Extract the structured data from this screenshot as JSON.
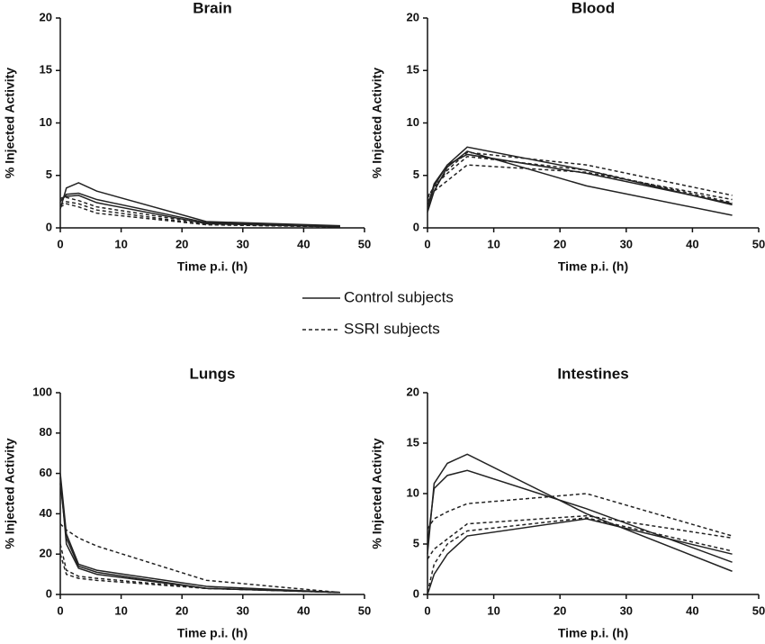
{
  "chart_data": [
    {
      "type": "line",
      "title": "Brain",
      "xlabel": "Time p.i. (h)",
      "ylabel": "% Injected Activity",
      "xlim": [
        0,
        50
      ],
      "ylim": [
        0,
        20
      ],
      "xticks": [
        0,
        10,
        20,
        30,
        40,
        50
      ],
      "yticks": [
        0,
        5,
        10,
        15,
        20
      ],
      "x": [
        0,
        1,
        3,
        6,
        24,
        46
      ],
      "color": "#222",
      "series": [
        {
          "style": "solid",
          "values": [
            1.8,
            3.8,
            4.3,
            3.5,
            0.6,
            0.2
          ]
        },
        {
          "style": "solid",
          "values": [
            2.5,
            3.2,
            3.3,
            2.7,
            0.5,
            0.1
          ]
        },
        {
          "style": "solid",
          "values": [
            2.8,
            3.0,
            3.1,
            2.4,
            0.4,
            0.1
          ]
        },
        {
          "style": "dashed",
          "values": [
            2.6,
            2.9,
            2.6,
            2.0,
            0.4,
            0.1
          ]
        },
        {
          "style": "dashed",
          "values": [
            2.2,
            2.5,
            2.3,
            1.7,
            0.3,
            0.1
          ]
        },
        {
          "style": "dashed",
          "values": [
            2.0,
            2.3,
            2.0,
            1.4,
            0.3,
            0.1
          ]
        }
      ]
    },
    {
      "type": "line",
      "title": "Blood",
      "xlabel": "Time p.i. (h)",
      "ylabel": "% Injected Activity",
      "xlim": [
        0,
        50
      ],
      "ylim": [
        0,
        20
      ],
      "xticks": [
        0,
        10,
        20,
        30,
        40,
        50
      ],
      "yticks": [
        0,
        5,
        10,
        15,
        20
      ],
      "x": [
        0,
        1,
        3,
        6,
        24,
        46
      ],
      "color": "#222",
      "series": [
        {
          "style": "solid",
          "values": [
            1.8,
            4.0,
            6.0,
            7.7,
            5.5,
            2.2
          ]
        },
        {
          "style": "solid",
          "values": [
            1.5,
            3.5,
            5.8,
            7.3,
            4.0,
            1.2
          ]
        },
        {
          "style": "solid",
          "values": [
            2.0,
            4.2,
            6.0,
            7.0,
            5.2,
            2.3
          ]
        },
        {
          "style": "dashed",
          "values": [
            3.0,
            3.8,
            5.5,
            7.2,
            6.0,
            3.1
          ]
        },
        {
          "style": "dashed",
          "values": [
            2.5,
            3.5,
            4.5,
            6.0,
            5.3,
            2.7
          ]
        },
        {
          "style": "dashed",
          "values": [
            2.8,
            4.0,
            5.2,
            6.8,
            5.5,
            2.4
          ]
        }
      ]
    },
    {
      "type": "line",
      "title": "Lungs",
      "xlabel": "Time p.i. (h)",
      "ylabel": "% Injected Activity",
      "xlim": [
        0,
        50
      ],
      "ylim": [
        0,
        100
      ],
      "xticks": [
        0,
        10,
        20,
        30,
        40,
        50
      ],
      "yticks": [
        0,
        20,
        40,
        60,
        80,
        100
      ],
      "x": [
        0,
        1,
        3,
        6,
        24,
        46
      ],
      "color": "#222",
      "series": [
        {
          "style": "solid",
          "values": [
            60,
            30,
            15,
            12,
            4,
            1
          ]
        },
        {
          "style": "solid",
          "values": [
            55,
            28,
            14,
            11,
            3,
            1
          ]
        },
        {
          "style": "solid",
          "values": [
            58,
            25,
            13,
            10,
            3,
            1
          ]
        },
        {
          "style": "dashed",
          "values": [
            35,
            32,
            28,
            24,
            7,
            1
          ]
        },
        {
          "style": "dashed",
          "values": [
            25,
            12,
            9,
            8,
            3,
            1
          ]
        },
        {
          "style": "dashed",
          "values": [
            20,
            10,
            8,
            7,
            3,
            1
          ]
        }
      ]
    },
    {
      "type": "line",
      "title": "Intestines",
      "xlabel": "Time p.i. (h)",
      "ylabel": "% Injected Activity",
      "xlim": [
        0,
        50
      ],
      "ylim": [
        0,
        20
      ],
      "xticks": [
        0,
        10,
        20,
        30,
        40,
        50
      ],
      "yticks": [
        0,
        5,
        10,
        15,
        20
      ],
      "x": [
        0,
        1,
        3,
        6,
        24,
        46
      ],
      "color": "#222",
      "series": [
        {
          "style": "solid",
          "values": [
            4,
            11,
            13,
            13.9,
            8,
            2.3
          ]
        },
        {
          "style": "solid",
          "values": [
            5,
            10.5,
            11.8,
            12.3,
            8.5,
            3.2
          ]
        },
        {
          "style": "solid",
          "values": [
            0,
            2,
            4,
            5.8,
            7.5,
            4
          ]
        },
        {
          "style": "dashed",
          "values": [
            6.5,
            7.5,
            8.2,
            9,
            10,
            5.8
          ]
        },
        {
          "style": "dashed",
          "values": [
            3.5,
            4.5,
            5.5,
            7,
            7.8,
            5.6
          ]
        },
        {
          "style": "dashed",
          "values": [
            0.2,
            3,
            5,
            6.3,
            7.6,
            4.3
          ]
        }
      ]
    }
  ],
  "legend": [
    {
      "label": "Control subjects",
      "style": "solid"
    },
    {
      "label": "SSRI subjects",
      "style": "dashed"
    }
  ]
}
